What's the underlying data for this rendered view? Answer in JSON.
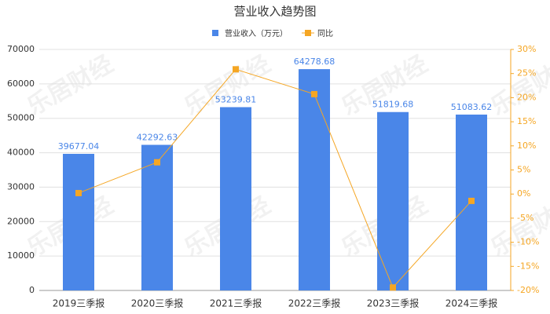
{
  "chart_data": {
    "type": "bar",
    "title": "营业收入趋势图",
    "watermark": "乐居财经",
    "categories": [
      "2019三季报",
      "2020三季报",
      "2021三季报",
      "2022三季报",
      "2023三季报",
      "2024三季报"
    ],
    "series": [
      {
        "name": "营业收入（万元）",
        "type": "bar",
        "color": "#4a86e8",
        "values": [
          39677.04,
          42292.63,
          53239.81,
          64278.68,
          51819.68,
          51083.62
        ]
      },
      {
        "name": "同比",
        "type": "line",
        "axis": "y2",
        "color": "#f5a623",
        "values": [
          0.2,
          6.59,
          25.88,
          20.73,
          -19.38,
          -1.42
        ]
      }
    ],
    "ylim": [
      0,
      70000
    ],
    "yticks": [
      0,
      10000,
      20000,
      30000,
      40000,
      50000,
      60000,
      70000
    ],
    "y2lim": [
      -20,
      30
    ],
    "y2ticks": [
      {
        "value": -20,
        "label": "-20%"
      },
      {
        "value": -15,
        "label": "-15%"
      },
      {
        "value": -10,
        "label": "-10%"
      },
      {
        "value": -5,
        "label": "-5%"
      },
      {
        "value": 0,
        "label": "0%"
      },
      {
        "value": 5,
        "label": "5%"
      },
      {
        "value": 10,
        "label": "10%"
      },
      {
        "value": 15,
        "label": "15%"
      },
      {
        "value": 20,
        "label": "20%"
      },
      {
        "value": 25,
        "label": "25%"
      },
      {
        "value": 30,
        "label": "30%"
      }
    ]
  }
}
